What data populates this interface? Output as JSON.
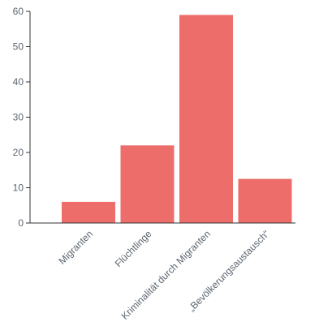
{
  "chart_data": {
    "type": "bar",
    "categories": [
      "Migranten",
      "Flüchtlinge",
      "Kriminalität durch Migranten",
      "„Bevölkerungsaustausch“"
    ],
    "values": [
      6,
      22,
      59,
      12.5
    ],
    "yticks": [
      0,
      10,
      20,
      30,
      40,
      50,
      60
    ],
    "ylim": [
      0,
      60
    ],
    "title": "",
    "xlabel": "",
    "ylabel": "",
    "grid": false,
    "bar_color": "#ec6d69",
    "axis_color": "#333333",
    "label_color": "#5b6570"
  }
}
